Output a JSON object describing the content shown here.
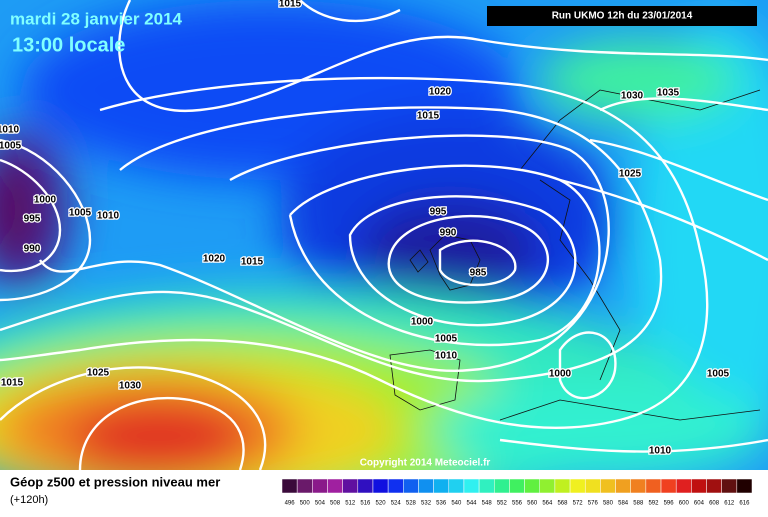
{
  "header": {
    "date": "mardi 28 janvier 2014",
    "time": "13:00 locale",
    "run": "Run UKMO 12h du 23/01/2014"
  },
  "isobar_labels": [
    "1015",
    "1020",
    "1015",
    "1030",
    "1035",
    "1025",
    "1010",
    "1005",
    "1000",
    "995",
    "990",
    "1005",
    "1010",
    "995",
    "990",
    "985",
    "1020",
    "1015",
    "1000",
    "1005",
    "1010",
    "1000",
    "1005",
    "1015",
    "1025",
    "1030",
    "1010"
  ],
  "copyright": "Copyright 2014 Meteociel.fr",
  "footer": {
    "title": "Géop z500 et pression niveau mer",
    "lead": "(+120h)"
  },
  "scale": {
    "values": [
      496,
      500,
      504,
      508,
      512,
      516,
      520,
      524,
      528,
      532,
      536,
      540,
      544,
      548,
      552,
      556,
      560,
      564,
      568,
      572,
      576,
      580,
      584,
      588,
      592,
      596,
      600,
      604,
      608,
      612,
      616
    ],
    "colors": [
      "#3a0a3a",
      "#6a1a6a",
      "#8a1a8a",
      "#a020a0",
      "#6010a0",
      "#3010c0",
      "#1010e0",
      "#1030f0",
      "#1060f0",
      "#1090f0",
      "#10b0f0",
      "#20d0f0",
      "#30f0f0",
      "#30f0c0",
      "#30f090",
      "#40f060",
      "#60f040",
      "#90f030",
      "#c0f020",
      "#f0f020",
      "#f0e020",
      "#f0c020",
      "#f0a020",
      "#f08020",
      "#f06020",
      "#f04020",
      "#e02020",
      "#c01010",
      "#a01010",
      "#601010",
      "#200000"
    ]
  }
}
